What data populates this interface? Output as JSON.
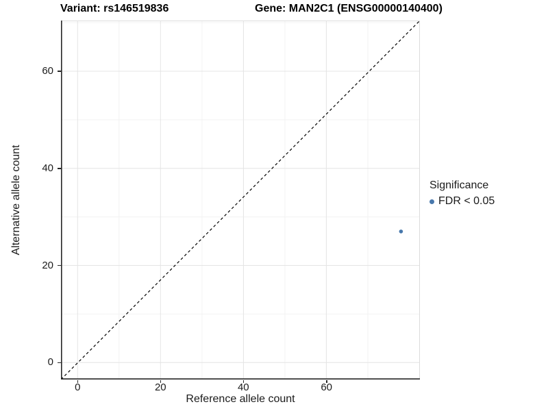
{
  "titles": {
    "variant": "Variant: rs146519836",
    "gene": "Gene: MAN2C1 (ENSG00000140400)"
  },
  "axes": {
    "x_label": "Reference allele count",
    "y_label": "Alternative allele count"
  },
  "legend": {
    "title": "Significance",
    "items": [
      {
        "label": "FDR < 0.05",
        "color": "#4878ac"
      }
    ]
  },
  "colors": {
    "point": "#4878ac",
    "grid_major": "#e4e4e4",
    "grid_minor": "#f2f2f2",
    "axis_line": "#262626",
    "panel_border": "#dcdcdc",
    "reference_line": "#000000"
  },
  "chart_data": {
    "type": "scatter",
    "title": "Variant: rs146519836   |   Gene: MAN2C1 (ENSG00000140400)",
    "xlabel": "Reference allele count",
    "ylabel": "Alternative allele count",
    "x_ticks": [
      0,
      20,
      40,
      60
    ],
    "y_ticks": [
      0,
      20,
      40,
      60
    ],
    "x_minor_ticks": [
      10,
      30,
      50,
      70
    ],
    "y_minor_ticks": [
      10,
      30,
      50,
      70
    ],
    "xlim": [
      -4,
      82.5
    ],
    "ylim": [
      -3.5,
      70.4
    ],
    "grid": "major+minor, light gray",
    "legend_position": "right-center",
    "reference_line": {
      "kind": "identity y=x",
      "style": "dashed",
      "color": "#000000"
    },
    "series": [
      {
        "name": "FDR < 0.05",
        "color": "#4878ac",
        "points": [
          [
            78,
            27
          ]
        ]
      }
    ]
  }
}
